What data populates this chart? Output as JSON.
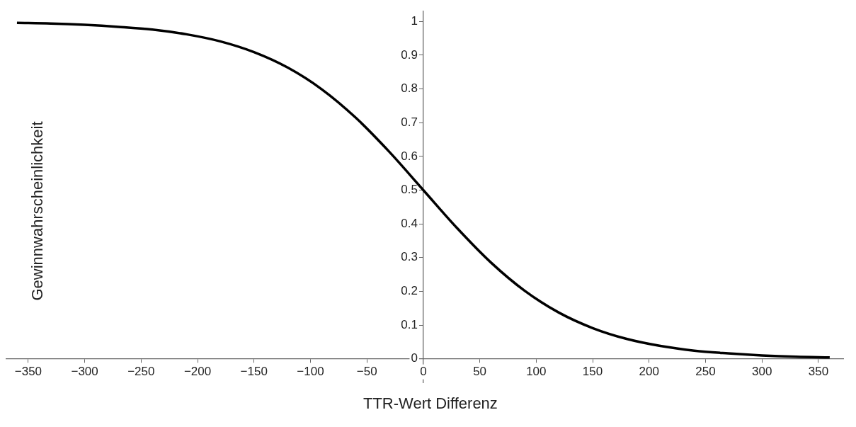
{
  "chart_data": {
    "type": "line",
    "xlabel": "TTR-Wert Differenz",
    "ylabel": "Gewinnwahrscheinlichkeit",
    "x": [
      -360,
      -330,
      -300,
      -270,
      -240,
      -210,
      -180,
      -150,
      -120,
      -90,
      -60,
      -30,
      0,
      30,
      60,
      90,
      120,
      150,
      180,
      210,
      240,
      270,
      300,
      330,
      360
    ],
    "series": [
      {
        "color": "#000000",
        "values": [
          0.996,
          0.994,
          0.99,
          0.984,
          0.976,
          0.962,
          0.941,
          0.909,
          0.863,
          0.799,
          0.715,
          0.613,
          0.5,
          0.387,
          0.285,
          0.201,
          0.137,
          0.091,
          0.059,
          0.038,
          0.024,
          0.016,
          0.01,
          0.006,
          0.004
        ]
      }
    ],
    "xlim": [
      -370,
      372
    ],
    "ylim": [
      -0.07,
      1.03
    ],
    "xticks": [
      -350,
      -300,
      -250,
      -200,
      -150,
      -100,
      -50,
      0,
      50,
      100,
      150,
      200,
      250,
      300,
      350
    ],
    "yticks": [
      0,
      0.1,
      0.2,
      0.3,
      0.4,
      0.5,
      0.6,
      0.7,
      0.8,
      0.9,
      1
    ],
    "grid": false,
    "legend": false,
    "marker": "none",
    "line_style": "solid"
  }
}
